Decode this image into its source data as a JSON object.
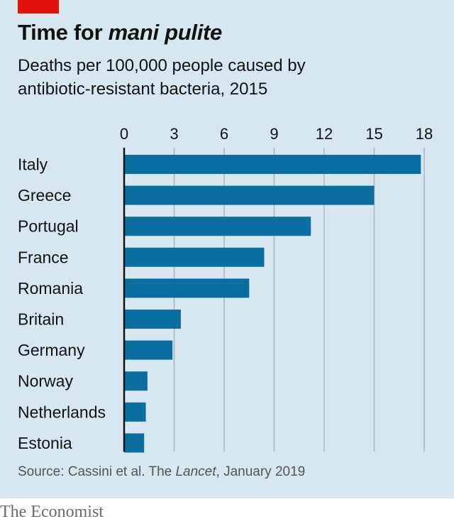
{
  "header": {
    "title_prefix": "Time for ",
    "title_emphasis": "mani pulite",
    "subtitle": "Deaths per 100,000 people caused by\nantibiotic-resistant bacteria, 2015"
  },
  "colors": {
    "background": "#d8e6ef",
    "bar": "#0b6ea0",
    "accent_tag": "#e3120b",
    "gridline": "#a8b8c2"
  },
  "chart_data": {
    "type": "bar",
    "orientation": "horizontal",
    "title": "Time for mani pulite",
    "subtitle": "Deaths per 100,000 people caused by antibiotic-resistant bacteria, 2015",
    "categories": [
      "Italy",
      "Greece",
      "Portugal",
      "France",
      "Romania",
      "Britain",
      "Germany",
      "Norway",
      "Netherlands",
      "Estonia"
    ],
    "values": [
      17.8,
      15.0,
      11.2,
      8.4,
      7.5,
      3.4,
      2.9,
      1.4,
      1.3,
      1.2
    ],
    "xlim": [
      0,
      18
    ],
    "xticks": [
      0,
      3,
      6,
      9,
      12,
      15,
      18
    ],
    "tick_position": "top",
    "grid": true
  },
  "footer": {
    "source_prefix": "Source: Cassini et al. The ",
    "source_emphasis": "Lancet",
    "source_suffix": ", January 2019",
    "brand": "The Economist"
  }
}
